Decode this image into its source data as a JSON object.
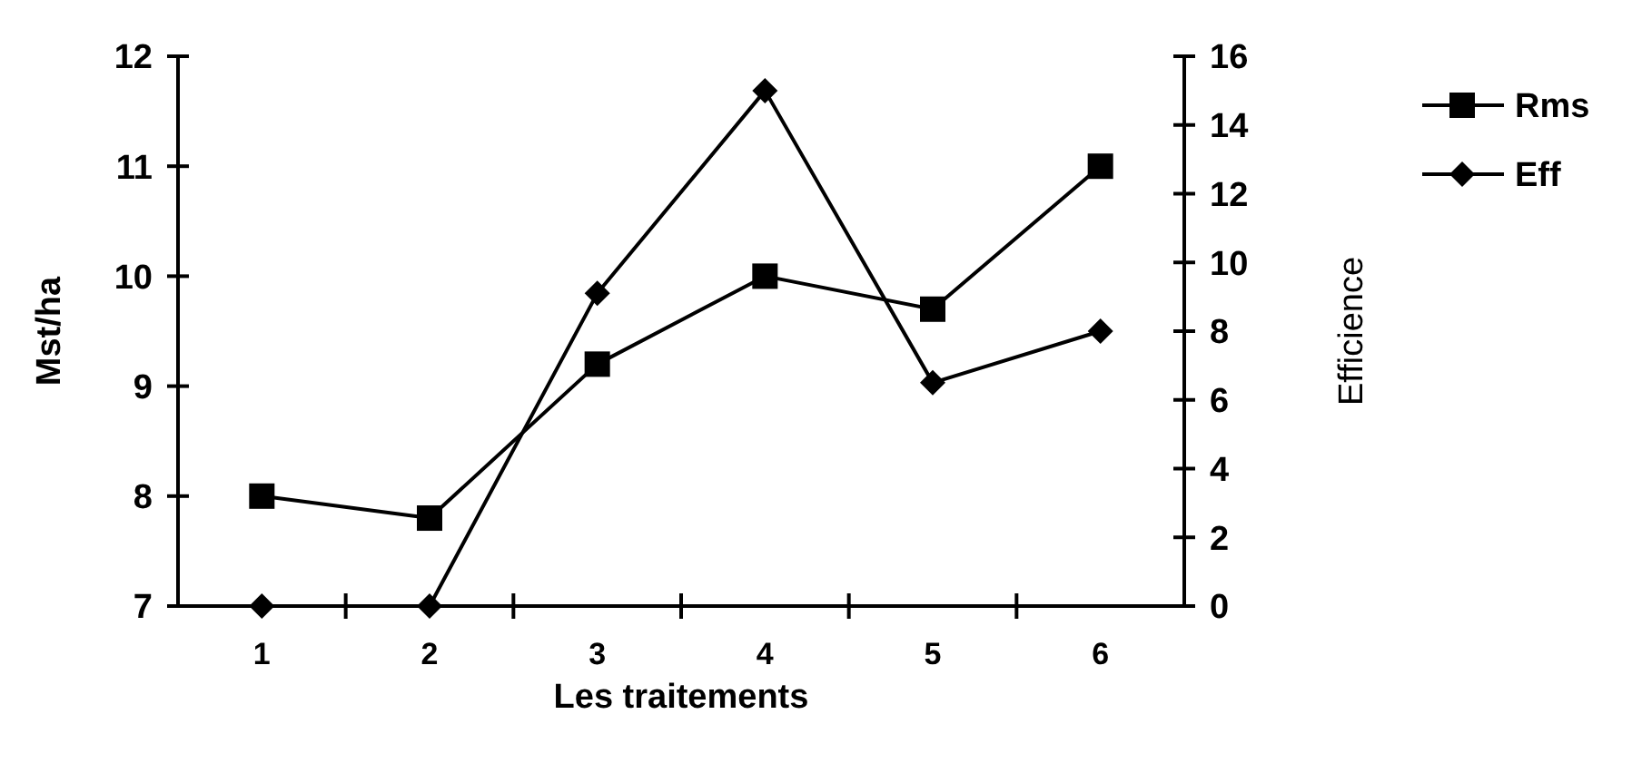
{
  "chart_data": {
    "type": "line",
    "xlabel": "Les traitements",
    "ylabel": "Mst/ha",
    "y2label": "Efficience",
    "categories": [
      "1",
      "2",
      "3",
      "4",
      "5",
      "6"
    ],
    "series": [
      {
        "name": "Rms",
        "color": "#000000",
        "marker": "square",
        "values": [
          8.0,
          7.8,
          9.2,
          10.0,
          9.7,
          11.0
        ]
      },
      {
        "name": "Eff",
        "color": "#000000",
        "marker": "diamond",
        "axis": "y2",
        "values": [
          0,
          0,
          9.1,
          15,
          6.5,
          8.0
        ]
      }
    ],
    "ylim": [
      7,
      12
    ],
    "yticks": [
      7,
      8,
      9,
      10,
      11,
      12
    ],
    "y2lim": [
      0,
      16
    ],
    "y2ticks": [
      0,
      2,
      4,
      6,
      8,
      10,
      12,
      14,
      16
    ],
    "legend": "top right",
    "grid": false
  }
}
